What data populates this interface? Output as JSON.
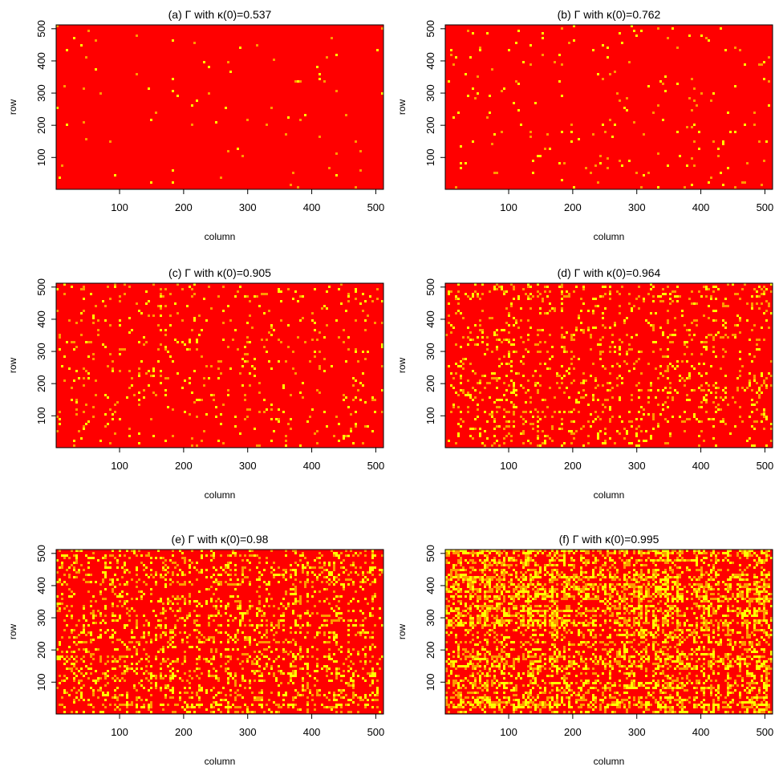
{
  "colors": {
    "background": "#ff0000",
    "highlight": "#ffff00"
  },
  "chart_data": [
    {
      "type": "heatmap",
      "title": "(a) Γ with κ(0)=0.537",
      "xlabel": "column",
      "ylabel": "row",
      "xlim": [
        1,
        512
      ],
      "ylim": [
        1,
        512
      ],
      "xticks": [
        "100",
        "200",
        "300",
        "400",
        "500"
      ],
      "yticks": [
        "100",
        "200",
        "300",
        "400",
        "500"
      ],
      "color_scale": [
        "#ff0000",
        "#ffff00"
      ],
      "highlight_density": 0.01
    },
    {
      "type": "heatmap",
      "title": "(b) Γ with κ(0)=0.762",
      "xlabel": "column",
      "ylabel": "row",
      "xlim": [
        1,
        512
      ],
      "ylim": [
        1,
        512
      ],
      "xticks": [
        "100",
        "200",
        "300",
        "400",
        "500"
      ],
      "yticks": [
        "100",
        "200",
        "300",
        "400",
        "500"
      ],
      "color_scale": [
        "#ff0000",
        "#ffff00"
      ],
      "highlight_density": 0.02
    },
    {
      "type": "heatmap",
      "title": "(c) Γ with κ(0)=0.905",
      "xlabel": "column",
      "ylabel": "row",
      "xlim": [
        1,
        512
      ],
      "ylim": [
        1,
        512
      ],
      "xticks": [
        "100",
        "200",
        "300",
        "400",
        "500"
      ],
      "yticks": [
        "100",
        "200",
        "300",
        "400",
        "500"
      ],
      "color_scale": [
        "#ff0000",
        "#ffff00"
      ],
      "highlight_density": 0.05
    },
    {
      "type": "heatmap",
      "title": "(d) Γ with κ(0)=0.964",
      "xlabel": "column",
      "ylabel": "row",
      "xlim": [
        1,
        512
      ],
      "ylim": [
        1,
        512
      ],
      "xticks": [
        "100",
        "200",
        "300",
        "400",
        "500"
      ],
      "yticks": [
        "100",
        "200",
        "300",
        "400",
        "500"
      ],
      "color_scale": [
        "#ff0000",
        "#ffff00"
      ],
      "highlight_density": 0.13
    },
    {
      "type": "heatmap",
      "title": "(e) Γ with κ(0)=0.98",
      "xlabel": "column",
      "ylabel": "row",
      "xlim": [
        1,
        512
      ],
      "ylim": [
        1,
        512
      ],
      "xticks": [
        "100",
        "200",
        "300",
        "400",
        "500"
      ],
      "yticks": [
        "100",
        "200",
        "300",
        "400",
        "500"
      ],
      "color_scale": [
        "#ff0000",
        "#ffff00"
      ],
      "highlight_density": 0.22
    },
    {
      "type": "heatmap",
      "title": "(f) Γ with κ(0)=0.995",
      "xlabel": "column",
      "ylabel": "row",
      "xlim": [
        1,
        512
      ],
      "ylim": [
        1,
        512
      ],
      "xticks": [
        "100",
        "200",
        "300",
        "400",
        "500"
      ],
      "yticks": [
        "100",
        "200",
        "300",
        "400",
        "500"
      ],
      "color_scale": [
        "#ff0000",
        "#ffff00"
      ],
      "highlight_density": 0.38
    }
  ]
}
